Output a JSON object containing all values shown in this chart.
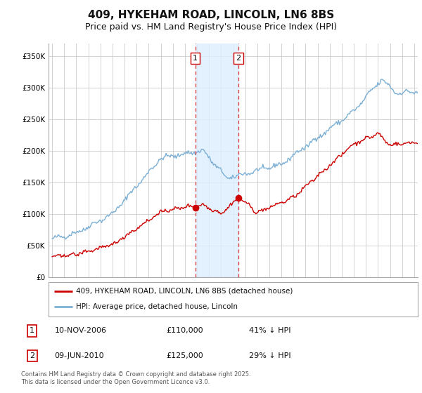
{
  "title": "409, HYKEHAM ROAD, LINCOLN, LN6 8BS",
  "subtitle": "Price paid vs. HM Land Registry's House Price Index (HPI)",
  "ylim": [
    0,
    370000
  ],
  "yticks": [
    0,
    50000,
    100000,
    150000,
    200000,
    250000,
    300000,
    350000
  ],
  "ytick_labels": [
    "£0",
    "£50K",
    "£100K",
    "£150K",
    "£200K",
    "£250K",
    "£300K",
    "£350K"
  ],
  "x_start_year": 1995,
  "x_end_year": 2025,
  "event1_year": 2006.86,
  "event1_label": "1",
  "event1_price": 110000,
  "event2_year": 2010.44,
  "event2_label": "2",
  "event2_price": 125000,
  "red_line_color": "#cc0000",
  "blue_line_color": "#7bafd4",
  "shade_color": "#ddeeff",
  "vline_color": "#dd3333",
  "legend_red_label": "409, HYKEHAM ROAD, LINCOLN, LN6 8BS (detached house)",
  "legend_blue_label": "HPI: Average price, detached house, Lincoln",
  "footnote": "Contains HM Land Registry data © Crown copyright and database right 2025.\nThis data is licensed under the Open Government Licence v3.0.",
  "background_color": "#ffffff",
  "grid_color": "#cccccc",
  "title_fontsize": 11,
  "subtitle_fontsize": 9,
  "tick_fontsize": 7.5
}
